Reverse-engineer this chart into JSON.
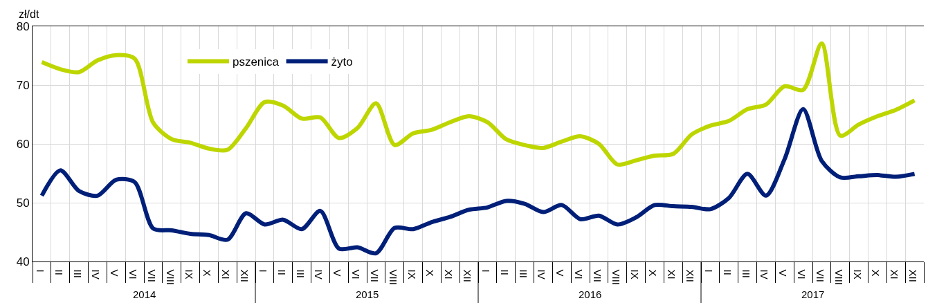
{
  "chart_data": {
    "type": "line",
    "categories": [
      "I",
      "II",
      "III",
      "IV",
      "V",
      "VI",
      "VII",
      "VIII",
      "IX",
      "X",
      "XI",
      "XII",
      "I",
      "II",
      "III",
      "IV",
      "V",
      "VI",
      "VII",
      "VIII",
      "IX",
      "X",
      "XI",
      "XII",
      "I",
      "II",
      "III",
      "IV",
      "V",
      "VI",
      "VII",
      "VIII",
      "IX",
      "X",
      "XI",
      "XII",
      "I",
      "II",
      "III",
      "IV",
      "V",
      "VI",
      "VII",
      "VIII",
      "IX",
      "X",
      "XI",
      "XII"
    ],
    "series": [
      {
        "name": "pszenica",
        "color": "#bed600",
        "values": [
          73.9,
          72.7,
          72.2,
          74.2,
          75.1,
          74.5,
          63.6,
          60.8,
          60.2,
          59.2,
          59.0,
          62.7,
          67.1,
          66.5,
          64.3,
          64.5,
          61.0,
          62.7,
          66.9,
          59.8,
          61.8,
          62.4,
          63.7,
          64.7,
          63.7,
          60.8,
          59.8,
          59.3,
          60.4,
          61.3,
          60.0,
          56.5,
          57.2,
          58.0,
          58.3,
          61.6,
          63.1,
          63.9,
          65.9,
          66.7,
          69.8,
          69.2,
          77.1,
          61.4,
          63.3,
          64.7,
          65.8,
          67.4
        ]
      },
      {
        "name": "żyto",
        "color": "#001f78",
        "values": [
          51.2,
          55.5,
          52.0,
          51.2,
          53.9,
          53.5,
          45.6,
          45.3,
          44.7,
          44.5,
          43.7,
          48.2,
          46.3,
          47.1,
          45.5,
          48.6,
          42.2,
          42.4,
          41.4,
          45.7,
          45.5,
          46.7,
          47.6,
          48.8,
          49.2,
          50.3,
          49.8,
          48.4,
          49.6,
          47.2,
          47.8,
          46.3,
          47.5,
          49.6,
          49.4,
          49.3,
          48.9,
          50.8,
          54.9,
          51.2,
          57.4,
          65.9,
          57.1,
          54.3,
          54.5,
          54.7,
          54.4,
          54.9
        ]
      }
    ],
    "ylabel": "zł/dt",
    "ylim": [
      40,
      80
    ],
    "yticks": [
      40,
      50,
      60,
      70,
      80
    ],
    "annotations": [
      "2014",
      "2015",
      "2016",
      "2017"
    ],
    "grid": true,
    "legend": "top left",
    "line_style": "solid"
  }
}
